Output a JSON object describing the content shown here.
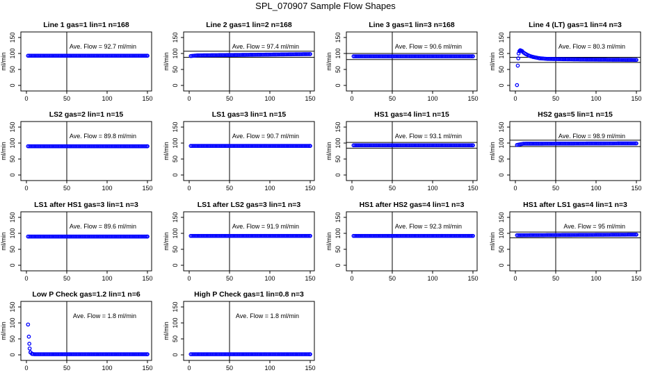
{
  "title": "SPL_070907  Sample Flow Shapes",
  "colors": {
    "points": "#0000ff",
    "frame": "#000000",
    "background": "#ffffff"
  },
  "chart_data": [
    {
      "type": "scatter",
      "title": "Line 1 gas=1 lin=1 n=168",
      "ylabel": "ml/min",
      "xlim": [
        0,
        150
      ],
      "ylim": [
        0,
        150
      ],
      "xticks": [
        "0",
        "50",
        "100",
        "150"
      ],
      "yticks": [
        "0",
        "50",
        "100",
        "150"
      ],
      "annotation": "Ave. Flow = 92.7  ml/min",
      "avg": 92.7,
      "vline_x": 50,
      "hlines": [],
      "series": [
        {
          "name": "flow",
          "x": [
            2,
            150
          ],
          "y": [
            93,
            93
          ]
        }
      ]
    },
    {
      "type": "scatter",
      "title": "Line 2 gas=1 lin=2 n=168",
      "ylabel": "ml/min",
      "xlim": [
        0,
        150
      ],
      "ylim": [
        0,
        150
      ],
      "xticks": [
        "0",
        "50",
        "100",
        "150"
      ],
      "yticks": [
        "0",
        "50",
        "100",
        "150"
      ],
      "annotation": "Ave. Flow = 97.4  ml/min",
      "avg": 97.4,
      "vline_x": 50,
      "hlines": [
        107,
        88
      ],
      "series": [
        {
          "name": "flow",
          "x": [
            2,
            10,
            150
          ],
          "y": [
            92,
            94,
            98
          ]
        }
      ]
    },
    {
      "type": "scatter",
      "title": "Line 3 gas=1 lin=3 n=168",
      "ylabel": "ml/min",
      "xlim": [
        0,
        150
      ],
      "ylim": [
        0,
        150
      ],
      "xticks": [
        "0",
        "50",
        "100",
        "150"
      ],
      "yticks": [
        "0",
        "50",
        "100",
        "150"
      ],
      "annotation": "Ave. Flow = 90.6  ml/min",
      "avg": 90.6,
      "vline_x": 50,
      "hlines": [
        100,
        81
      ],
      "series": [
        {
          "name": "flow",
          "x": [
            2,
            150
          ],
          "y": [
            91,
            91
          ]
        }
      ]
    },
    {
      "type": "scatter",
      "title": "Line 4 (LT) gas=1 lin=4 n=3",
      "ylabel": "ml/min",
      "xlim": [
        0,
        150
      ],
      "ylim": [
        0,
        150
      ],
      "xticks": [
        "0",
        "50",
        "100",
        "150"
      ],
      "yticks": [
        "0",
        "50",
        "100",
        "150"
      ],
      "annotation": "Ave. Flow = 80.3  ml/min",
      "avg": 80.3,
      "vline_x": 50,
      "hlines": [
        88,
        72
      ],
      "series": [
        {
          "name": "flow",
          "x": [
            2,
            3,
            4,
            5,
            6,
            8,
            10,
            13,
            17,
            22,
            30,
            40,
            60,
            90,
            150
          ],
          "y": [
            1,
            62,
            100,
            107,
            110,
            108,
            103,
            98,
            93,
            89,
            85,
            83,
            82,
            81,
            80
          ]
        }
      ]
    },
    {
      "type": "scatter",
      "title": "LS2 gas=2 lin=1 n=15",
      "ylabel": "ml/min",
      "xlim": [
        0,
        150
      ],
      "ylim": [
        0,
        150
      ],
      "xticks": [
        "0",
        "50",
        "100",
        "150"
      ],
      "yticks": [
        "0",
        "50",
        "100",
        "150"
      ],
      "annotation": "Ave. Flow = 89.8  ml/min",
      "avg": 89.8,
      "vline_x": 50,
      "hlines": [],
      "series": [
        {
          "name": "flow",
          "x": [
            2,
            150
          ],
          "y": [
            90,
            90
          ]
        }
      ]
    },
    {
      "type": "scatter",
      "title": "LS1 gas=3 lin=1 n=15",
      "ylabel": "ml/min",
      "xlim": [
        0,
        150
      ],
      "ylim": [
        0,
        150
      ],
      "xticks": [
        "0",
        "50",
        "100",
        "150"
      ],
      "yticks": [
        "0",
        "50",
        "100",
        "150"
      ],
      "annotation": "Ave. Flow = 90.7  ml/min",
      "avg": 90.7,
      "vline_x": 50,
      "hlines": [],
      "series": [
        {
          "name": "flow",
          "x": [
            2,
            150
          ],
          "y": [
            91,
            91
          ]
        }
      ]
    },
    {
      "type": "scatter",
      "title": "HS1 gas=4 lin=1 n=15",
      "ylabel": "ml/min",
      "xlim": [
        0,
        150
      ],
      "ylim": [
        0,
        150
      ],
      "xticks": [
        "0",
        "50",
        "100",
        "150"
      ],
      "yticks": [
        "0",
        "50",
        "100",
        "150"
      ],
      "annotation": "Ave. Flow = 93.1  ml/min",
      "avg": 93.1,
      "vline_x": 50,
      "hlines": [
        102,
        84
      ],
      "series": [
        {
          "name": "flow",
          "x": [
            2,
            150
          ],
          "y": [
            93,
            93
          ]
        }
      ]
    },
    {
      "type": "scatter",
      "title": "HS2 gas=5 lin=1 n=15",
      "ylabel": "ml/min",
      "xlim": [
        0,
        150
      ],
      "ylim": [
        0,
        150
      ],
      "xticks": [
        "0",
        "50",
        "100",
        "150"
      ],
      "yticks": [
        "0",
        "50",
        "100",
        "150"
      ],
      "annotation": "Ave. Flow = 98.9  ml/min",
      "avg": 98.9,
      "vline_x": 50,
      "hlines": [
        109,
        89
      ],
      "series": [
        {
          "name": "flow",
          "x": [
            2,
            10,
            150
          ],
          "y": [
            94,
            98,
            99
          ]
        }
      ]
    },
    {
      "type": "scatter",
      "title": "LS1 after HS1 gas=3 lin=1 n=3",
      "ylabel": "ml/min",
      "xlim": [
        0,
        150
      ],
      "ylim": [
        0,
        150
      ],
      "xticks": [
        "0",
        "50",
        "100",
        "150"
      ],
      "yticks": [
        "0",
        "50",
        "100",
        "150"
      ],
      "annotation": "Ave. Flow = 89.6  ml/min",
      "avg": 89.6,
      "vline_x": 50,
      "hlines": [],
      "series": [
        {
          "name": "flow",
          "x": [
            2,
            150
          ],
          "y": [
            90,
            90
          ]
        }
      ]
    },
    {
      "type": "scatter",
      "title": "LS1 after LS2 gas=3 lin=1 n=3",
      "ylabel": "ml/min",
      "xlim": [
        0,
        150
      ],
      "ylim": [
        0,
        150
      ],
      "xticks": [
        "0",
        "50",
        "100",
        "150"
      ],
      "yticks": [
        "0",
        "50",
        "100",
        "150"
      ],
      "annotation": "Ave. Flow = 91.9  ml/min",
      "avg": 91.9,
      "vline_x": 50,
      "hlines": [],
      "series": [
        {
          "name": "flow",
          "x": [
            2,
            150
          ],
          "y": [
            92,
            92
          ]
        }
      ]
    },
    {
      "type": "scatter",
      "title": "HS1 after HS2 gas=4 lin=1 n=3",
      "ylabel": "ml/min",
      "xlim": [
        0,
        150
      ],
      "ylim": [
        0,
        150
      ],
      "xticks": [
        "0",
        "50",
        "100",
        "150"
      ],
      "yticks": [
        "0",
        "50",
        "100",
        "150"
      ],
      "annotation": "Ave. Flow = 92.3  ml/min",
      "avg": 92.3,
      "vline_x": 50,
      "hlines": [],
      "series": [
        {
          "name": "flow",
          "x": [
            2,
            150
          ],
          "y": [
            92,
            92
          ]
        }
      ]
    },
    {
      "type": "scatter",
      "title": "HS1 after LS1 gas=4 lin=1 n=3",
      "ylabel": "ml/min",
      "xlim": [
        0,
        150
      ],
      "ylim": [
        0,
        150
      ],
      "xticks": [
        "0",
        "50",
        "100",
        "150"
      ],
      "yticks": [
        "0",
        "50",
        "100",
        "150"
      ],
      "annotation": "Ave. Flow = 95  ml/min",
      "avg": 95,
      "vline_x": 50,
      "hlines": [
        104,
        86
      ],
      "series": [
        {
          "name": "flow",
          "x": [
            2,
            150
          ],
          "y": [
            94,
            96
          ]
        }
      ]
    },
    {
      "type": "scatter",
      "title": "Low P Check gas=1.2 lin=1 n=6",
      "ylabel": "ml/min",
      "xlim": [
        0,
        150
      ],
      "ylim": [
        0,
        150
      ],
      "xticks": [
        "0",
        "50",
        "100",
        "150"
      ],
      "yticks": [
        "0",
        "50",
        "100",
        "150"
      ],
      "annotation": "Ave. Flow = 1.8  ml/min",
      "avg": 1.8,
      "vline_x": 50,
      "hlines": [],
      "series": [
        {
          "name": "flow",
          "x": [
            2,
            3,
            4,
            5,
            7,
            10,
            150
          ],
          "y": [
            95,
            57,
            20,
            8,
            3,
            2,
            2
          ]
        }
      ]
    },
    {
      "type": "scatter",
      "title": "High P Check gas=1 lin=0.8 n=3",
      "ylabel": "ml/min",
      "xlim": [
        0,
        150
      ],
      "ylim": [
        0,
        150
      ],
      "xticks": [
        "0",
        "50",
        "100",
        "150"
      ],
      "yticks": [
        "0",
        "50",
        "100",
        "150"
      ],
      "annotation": "Ave. Flow = 1.8  ml/min",
      "avg": 1.8,
      "vline_x": 50,
      "hlines": [],
      "series": [
        {
          "name": "flow",
          "x": [
            2,
            150
          ],
          "y": [
            2,
            2
          ]
        }
      ]
    }
  ]
}
